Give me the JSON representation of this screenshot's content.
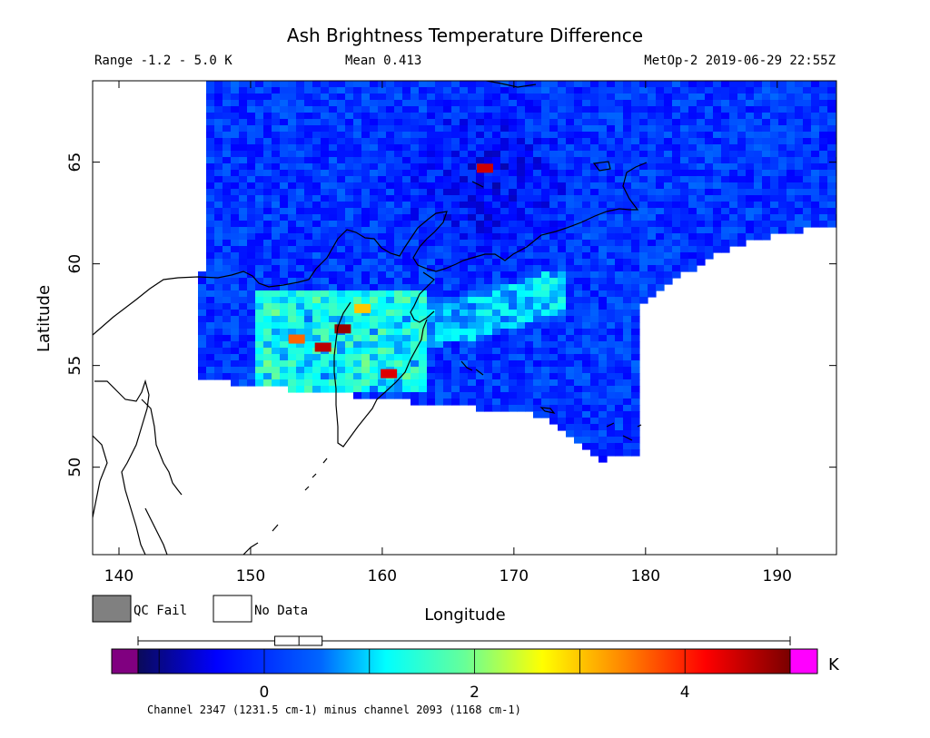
{
  "chart_data": {
    "type": "heatmap",
    "title": "Ash Brightness Temperature Difference",
    "range_text": "Range -1.2 - 5.0 K",
    "mean_text": "Mean 0.413",
    "instrument_text": "MetOp-2 2019-06-29 22:55Z",
    "xlabel": "Longitude",
    "ylabel": "Latitude",
    "xlim": [
      138,
      194.5
    ],
    "ylim": [
      45.7,
      69
    ],
    "x_ticks": [
      140,
      150,
      160,
      170,
      180,
      190
    ],
    "y_ticks": [
      50,
      55,
      60,
      65
    ],
    "value_range": [
      -1.2,
      5.0
    ],
    "mean": 0.413,
    "hotspots": [
      {
        "lon": 155.5,
        "lat": 55.9,
        "value": 4.6
      },
      {
        "lon": 157.0,
        "lat": 56.8,
        "value": 4.8
      },
      {
        "lon": 160.5,
        "lat": 54.6,
        "value": 4.4
      },
      {
        "lon": 153.5,
        "lat": 56.3,
        "value": 3.6
      },
      {
        "lon": 158.5,
        "lat": 57.8,
        "value": 3.0
      },
      {
        "lon": 167.8,
        "lat": 64.7,
        "value": 4.5
      }
    ],
    "colorbar": {
      "unit": "K",
      "ticks": [
        0,
        2,
        4
      ],
      "range": [
        -1.2,
        5.0
      ],
      "box_q1": 0.1,
      "box_median": 0.33,
      "box_q3": 0.55,
      "whisker_min": -1.2,
      "whisker_max": 5.0
    },
    "legend": [
      {
        "label": "QC Fail",
        "color": "#808080"
      },
      {
        "label": "No Data",
        "color": "#ffffff"
      }
    ],
    "footnote": "Channel 2347 (1231.5 cm-1) minus channel 2093 (1168 cm-1)"
  }
}
